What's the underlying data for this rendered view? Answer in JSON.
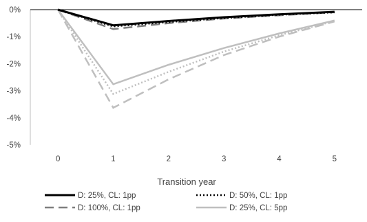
{
  "chart_data": {
    "type": "line",
    "xlabel": "Transition year",
    "ylabel": "",
    "x": [
      0,
      1,
      2,
      3,
      4,
      5
    ],
    "x_tick_labels": [
      "0",
      "1",
      "2",
      "3",
      "4",
      "5"
    ],
    "y_tick_labels": [
      "0%",
      "-1%",
      "-2%",
      "-3%",
      "-4%",
      "-5%"
    ],
    "y_ticks": [
      0,
      -1,
      -2,
      -3,
      -4,
      -5
    ],
    "ylim": [
      -5,
      0
    ],
    "xlim": [
      -0.5,
      5.5
    ],
    "grid": false,
    "legend_position": "bottom",
    "series": [
      {
        "name": "D: 25%, CL: 1pp",
        "values": [
          0,
          -0.58,
          -0.42,
          -0.28,
          -0.17,
          -0.08
        ],
        "color": "#000000",
        "style": "solid"
      },
      {
        "name": "D: 50%, CL: 1pp",
        "values": [
          0,
          -0.62,
          -0.46,
          -0.31,
          -0.19,
          -0.1
        ],
        "color": "#000000",
        "style": "dotted"
      },
      {
        "name": "D: 100%, CL: 1pp",
        "values": [
          0,
          -0.72,
          -0.5,
          -0.33,
          -0.21,
          -0.1
        ],
        "color": "#7f7f7f",
        "style": "dashed"
      },
      {
        "name": "D: 25%, CL: 5pp",
        "values": [
          0,
          -2.76,
          -2.04,
          -1.42,
          -0.88,
          -0.4
        ],
        "color": "#bfbfbf",
        "style": "solid"
      },
      {
        "name": "",
        "values": [
          0,
          -3.12,
          -2.3,
          -1.55,
          -0.95,
          -0.42
        ],
        "color": "#bfbfbf",
        "style": "dotted"
      },
      {
        "name": "",
        "values": [
          0,
          -3.63,
          -2.58,
          -1.68,
          -1.0,
          -0.44
        ],
        "color": "#bfbfbf",
        "style": "dashed"
      }
    ]
  }
}
